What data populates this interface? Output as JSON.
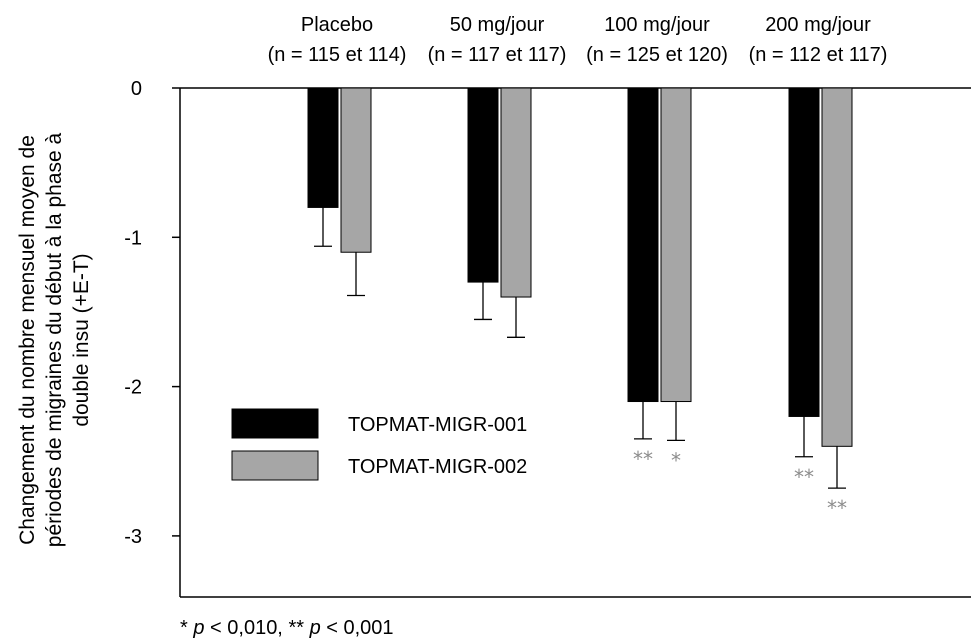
{
  "chart_data": {
    "type": "bar",
    "ylabel_lines": [
      "Changement du nombre mensuel moyen de",
      "périodes de migraines du début à la phase à",
      "double insu (+E-T)"
    ],
    "categories": [
      {
        "label": "Placebo",
        "n": "(n = 115 et 114)"
      },
      {
        "label": "50 mg/jour",
        "n": "(n = 117 et 117)"
      },
      {
        "label": "100 mg/jour",
        "n": "(n = 125 et 120)"
      },
      {
        "label": "200 mg/jour",
        "n": "(n = 112 et 117)"
      }
    ],
    "series": [
      {
        "name": "TOPMAT-MIGR-001",
        "color": "#000000",
        "values": [
          -0.8,
          -1.3,
          -2.1,
          -2.2
        ],
        "errors": [
          0.26,
          0.25,
          0.25,
          0.27
        ],
        "significance": [
          "",
          "",
          "**",
          "**"
        ]
      },
      {
        "name": "TOPMAT-MIGR-002",
        "color": "#a6a6a6",
        "values": [
          -1.1,
          -1.4,
          -2.1,
          -2.4
        ],
        "errors": [
          0.29,
          0.27,
          0.26,
          0.28
        ],
        "significance": [
          "",
          "",
          "*",
          "**"
        ]
      }
    ],
    "ylim": [
      -3.4,
      0
    ],
    "yticks": [
      0,
      -1,
      -2,
      -3
    ],
    "ytick_labels": [
      "0",
      "-1",
      "-2",
      "-3"
    ],
    "legend_position": "lower-left",
    "grid": false
  },
  "footnote": {
    "p1": "p",
    "t1": " < 0,010, ",
    "p2": "p",
    "t2": " < 0,001",
    "s1": "* ",
    "s2": "** "
  }
}
